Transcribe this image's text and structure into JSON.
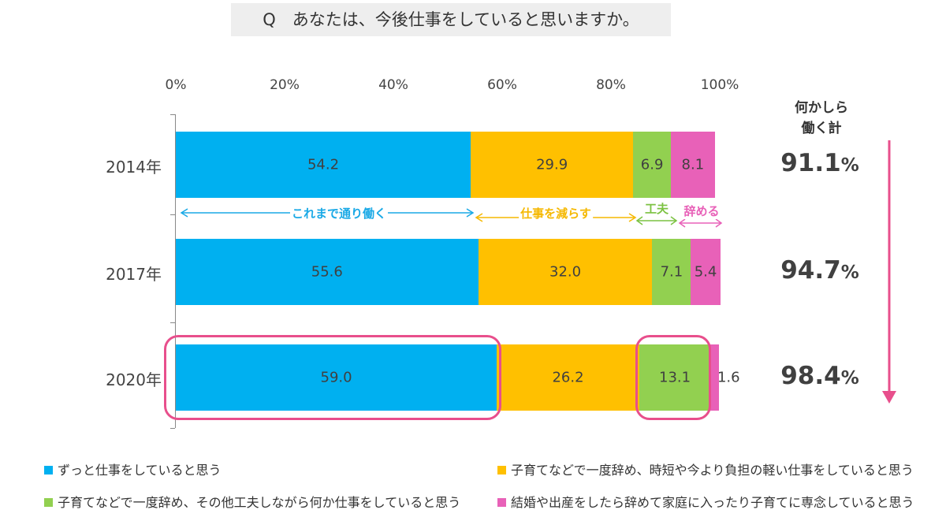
{
  "question": "Q　あなたは、今後仕事をしていると思いますか。",
  "summary_header": [
    "何かしら",
    "働く計"
  ],
  "colors": {
    "always": "#00b0f0",
    "reduce": "#ffc000",
    "devise": "#92d050",
    "quit": "#e861b8",
    "highlight": "#e84f8c",
    "arrow": "#e84f8c"
  },
  "annotations": [
    {
      "label": "これまで通り働く",
      "color": "#1aa9e6"
    },
    {
      "label": "仕事を減らす",
      "color": "#f5b800"
    },
    {
      "label": "工夫",
      "color": "#7cc242"
    },
    {
      "label": "辞める",
      "color": "#e861b8"
    }
  ],
  "legend": [
    {
      "label": "ずっと仕事をしていると思う",
      "color": "#00b0f0"
    },
    {
      "label": "子育てなどで一度辞め、時短や今より負担の軽い仕事をしていると思う",
      "color": "#ffc000"
    },
    {
      "label": "子育てなどで一度辞め、その他工夫しながら何か仕事をしていると思う",
      "color": "#92d050"
    },
    {
      "label": "結婚や出産をしたら辞めて家庭に入ったり子育てに専念していると思う",
      "color": "#e861b8"
    }
  ],
  "chart_data": {
    "type": "bar",
    "orientation": "horizontal",
    "stacked": true,
    "categories": [
      "2014年",
      "2017年",
      "2020年"
    ],
    "xlim": [
      0,
      100
    ],
    "x_ticks": [
      "0%",
      "20%",
      "40%",
      "60%",
      "80%",
      "100%"
    ],
    "series": [
      {
        "name": "ずっと仕事をしていると思う",
        "values": [
          54.2,
          55.6,
          59.0
        ],
        "labels": [
          "54.2",
          "55.6",
          "59.0"
        ]
      },
      {
        "name": "子育てなどで一度辞め、時短や今より負担の軽い仕事をしていると思う",
        "values": [
          29.9,
          32.0,
          26.2
        ],
        "labels": [
          "29.9",
          "32.0",
          "26.2"
        ]
      },
      {
        "name": "子育てなどで一度辞め、その他工夫しながら何か仕事をしていると思う",
        "values": [
          6.9,
          7.1,
          13.1
        ],
        "labels": [
          "6.9",
          "7.1",
          "13.1"
        ]
      },
      {
        "name": "結婚や出産をしたら辞めて家庭に入ったり子育てに専念していると思う",
        "values": [
          8.1,
          5.4,
          1.6
        ],
        "labels": [
          "8.1",
          "5.4",
          "1.6"
        ]
      }
    ],
    "totals": [
      {
        "value": "91.1",
        "unit": "%"
      },
      {
        "value": "94.7",
        "unit": "%"
      },
      {
        "value": "98.4",
        "unit": "%"
      }
    ],
    "legend_position": "bottom",
    "grid": false
  }
}
